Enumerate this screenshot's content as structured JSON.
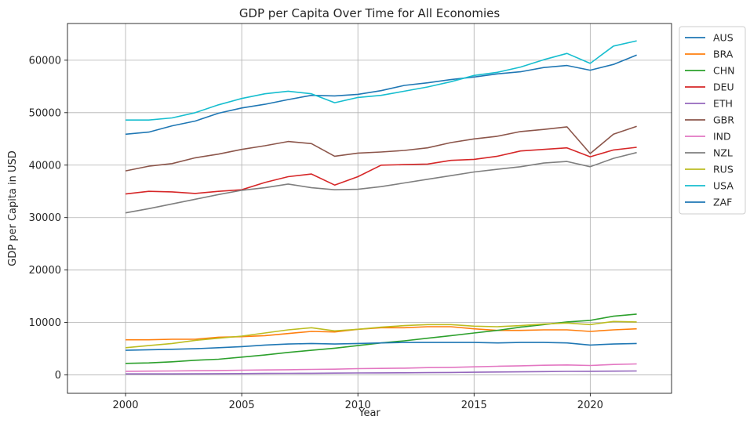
{
  "chart_data": {
    "type": "line",
    "title": "GDP per Capita Over Time for All Economies",
    "xlabel": "Year",
    "ylabel": "GDP per Capita in USD",
    "xlim": [
      1997.5,
      2023.5
    ],
    "ylim": [
      -3500,
      67000
    ],
    "xticks": [
      2000,
      2005,
      2010,
      2015,
      2020
    ],
    "yticks": [
      0,
      10000,
      20000,
      30000,
      40000,
      50000,
      60000
    ],
    "grid": true,
    "legend_position": "outside-top-right",
    "x": [
      2000,
      2001,
      2002,
      2003,
      2004,
      2005,
      2006,
      2007,
      2008,
      2009,
      2010,
      2011,
      2012,
      2013,
      2014,
      2015,
      2016,
      2017,
      2018,
      2019,
      2020,
      2021,
      2022
    ],
    "series": [
      {
        "name": "AUS",
        "color": "#1f77b4",
        "values": [
          45900,
          46300,
          47500,
          48400,
          49900,
          50900,
          51600,
          52500,
          53300,
          53200,
          53500,
          54200,
          55200,
          55700,
          56300,
          56800,
          57400,
          57800,
          58600,
          59000,
          58100,
          59200,
          61000
        ]
      },
      {
        "name": "BRA",
        "color": "#ff7f0e",
        "values": [
          6700,
          6700,
          6800,
          6800,
          7200,
          7300,
          7500,
          7900,
          8300,
          8200,
          8700,
          9000,
          9000,
          9200,
          9200,
          8800,
          8500,
          8500,
          8600,
          8600,
          8300,
          8600,
          8800
        ]
      },
      {
        "name": "CHN",
        "color": "#2ca02c",
        "values": [
          2200,
          2300,
          2500,
          2800,
          3000,
          3400,
          3800,
          4300,
          4700,
          5100,
          5600,
          6100,
          6500,
          7000,
          7500,
          8000,
          8500,
          9100,
          9600,
          10100,
          10400,
          11200,
          11600
        ]
      },
      {
        "name": "DEU",
        "color": "#d62728",
        "values": [
          34500,
          35000,
          34900,
          34600,
          35000,
          35300,
          36700,
          37800,
          38300,
          36200,
          37800,
          40000,
          40100,
          40200,
          40900,
          41100,
          41700,
          42700,
          43000,
          43300,
          41600,
          42900,
          43400
        ]
      },
      {
        "name": "ETH",
        "color": "#9467bd",
        "values": [
          200,
          200,
          210,
          220,
          250,
          270,
          290,
          310,
          330,
          350,
          380,
          400,
          420,
          450,
          480,
          520,
          560,
          600,
          640,
          680,
          700,
          730,
          760
        ]
      },
      {
        "name": "GBR",
        "color": "#8c564b",
        "values": [
          38900,
          39800,
          40300,
          41400,
          42100,
          43000,
          43700,
          44500,
          44100,
          41700,
          42300,
          42500,
          42800,
          43300,
          44300,
          45000,
          45500,
          46400,
          46800,
          47300,
          42200,
          45900,
          47400
        ]
      },
      {
        "name": "IND",
        "color": "#e377c2",
        "values": [
          700,
          720,
          750,
          800,
          850,
          900,
          950,
          1000,
          1050,
          1100,
          1200,
          1250,
          1300,
          1400,
          1450,
          1550,
          1650,
          1750,
          1850,
          1900,
          1800,
          2000,
          2100
        ]
      },
      {
        "name": "NZL",
        "color": "#7f7f7f",
        "values": [
          30900,
          31700,
          32600,
          33500,
          34400,
          35200,
          35700,
          36400,
          35700,
          35300,
          35400,
          35900,
          36600,
          37300,
          38000,
          38700,
          39200,
          39700,
          40400,
          40700,
          39700,
          41300,
          42400
        ]
      },
      {
        "name": "RUS",
        "color": "#bcbd22",
        "values": [
          5200,
          5600,
          6000,
          6600,
          7000,
          7400,
          8000,
          8600,
          9000,
          8400,
          8700,
          9100,
          9400,
          9600,
          9600,
          9300,
          9200,
          9400,
          9700,
          9900,
          9600,
          10200,
          10100
        ]
      },
      {
        "name": "USA",
        "color": "#17becf",
        "values": [
          48600,
          48600,
          49000,
          50000,
          51500,
          52700,
          53600,
          54100,
          53600,
          51900,
          52900,
          53300,
          54100,
          54900,
          55900,
          57100,
          57700,
          58700,
          60100,
          61300,
          59400,
          62700,
          63700
        ]
      },
      {
        "name": "ZAF",
        "color": "#1f77b4",
        "values": [
          4700,
          4800,
          4900,
          5000,
          5200,
          5400,
          5700,
          5900,
          6000,
          5900,
          6000,
          6100,
          6200,
          6200,
          6200,
          6200,
          6100,
          6200,
          6200,
          6100,
          5700,
          5900,
          6000
        ]
      }
    ]
  }
}
